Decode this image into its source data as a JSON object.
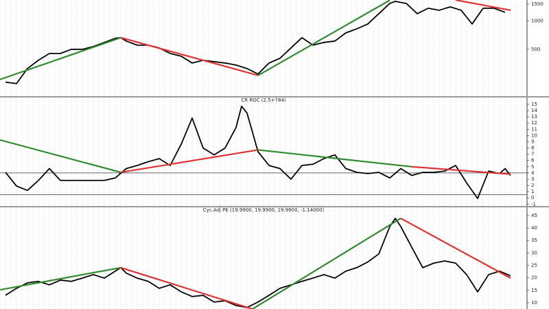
{
  "chart_data": [
    {
      "type": "line",
      "log_scale": true,
      "ylim": [
        160,
        1660
      ],
      "yticks": [
        500,
        1000,
        1500
      ],
      "xlim": [
        0,
        96
      ],
      "xticks": [
        0,
        1,
        2,
        3,
        4,
        5,
        6,
        7,
        8,
        9,
        10,
        11,
        12,
        13,
        14,
        15,
        16,
        17,
        18,
        19,
        20,
        21,
        22,
        23,
        24,
        25,
        26,
        27,
        28,
        29,
        30,
        31,
        32,
        33,
        34,
        35,
        36,
        37,
        38,
        39,
        40,
        41,
        42,
        43,
        44,
        45,
        46,
        47,
        48,
        49,
        50,
        51,
        52,
        53,
        54,
        55,
        56,
        57,
        58,
        59,
        60,
        61,
        62,
        63,
        64,
        65,
        66,
        67,
        68,
        69,
        70,
        71,
        72,
        73,
        74,
        75,
        76,
        77,
        78,
        79,
        80,
        81,
        82,
        83,
        84,
        85,
        86,
        87,
        88,
        89,
        90,
        91,
        92,
        93,
        94,
        95,
        96
      ],
      "grid": true,
      "series": [
        {
          "color": "#000000",
          "x": [
            1,
            3,
            5,
            7,
            9,
            11,
            13,
            15,
            17,
            19,
            21,
            22,
            23,
            25,
            27,
            29,
            31,
            33,
            35,
            37,
            39,
            41,
            43,
            45,
            47,
            49,
            51,
            53,
            55,
            57,
            59,
            61,
            63,
            65,
            67,
            69,
            71,
            72,
            74,
            76,
            78,
            80,
            82,
            84,
            86,
            88,
            90,
            92
          ],
          "values": [
            225,
            217,
            313,
            383,
            452,
            452,
            500,
            500,
            535,
            591,
            653,
            664,
            611,
            553,
            553,
            517,
            452,
            423,
            358,
            383,
            370,
            358,
            341,
            313,
            274,
            358,
            402,
            517,
            664,
            553,
            591,
            611,
            746,
            824,
            926,
            1190,
            1528,
            1606,
            1528,
            1190,
            1359,
            1293,
            1405,
            1293,
            926,
            1359,
            1359,
            1230
          ]
        },
        {
          "color": "#2e8b2e",
          "x": [
            0,
            22
          ],
          "values": [
            240,
            664
          ]
        },
        {
          "color": "#e03030",
          "x": [
            22,
            47
          ],
          "values": [
            664,
            265
          ]
        },
        {
          "color": "#2e8b2e",
          "x": [
            47,
            71
          ],
          "values": [
            265,
            1650
          ]
        },
        {
          "color": "#e03030",
          "x": [
            83,
            93
          ],
          "values": [
            1660,
            1293
          ]
        }
      ]
    },
    {
      "type": "line",
      "title": "CR ROC (2.5+784)",
      "ylim": [
        -1.3,
        16.1
      ],
      "yticks": [
        -1,
        0,
        1,
        2,
        3,
        4,
        5,
        6,
        7,
        8,
        9,
        10,
        11,
        12,
        13,
        14,
        15
      ],
      "xlim": [
        0,
        96
      ],
      "xticks": [
        0,
        1,
        2,
        3,
        4,
        5,
        6,
        7,
        8,
        9,
        10,
        11,
        12,
        13,
        14,
        15,
        16,
        17,
        18,
        19,
        20,
        21,
        22,
        23,
        24,
        25,
        26,
        27,
        28,
        29,
        30,
        31,
        32,
        33,
        34,
        35,
        36,
        37,
        38,
        39,
        40,
        41,
        42,
        43,
        44,
        45,
        46,
        47,
        48,
        49,
        50,
        51,
        52,
        53,
        54,
        55,
        56,
        57,
        58,
        59,
        60,
        61,
        62,
        63,
        64,
        65,
        66,
        67,
        68,
        69,
        70,
        71,
        72,
        73,
        74,
        75,
        76,
        77,
        78,
        79,
        80,
        81,
        82,
        83,
        84,
        85,
        86,
        87,
        88,
        89,
        90,
        91,
        92,
        93,
        94,
        95,
        96
      ],
      "grid": true,
      "hlines": [
        4,
        0.5
      ],
      "series": [
        {
          "color": "#000000",
          "x": [
            1,
            3,
            5,
            7,
            9,
            11,
            13,
            15,
            17,
            19,
            21,
            23,
            25,
            27,
            29,
            31,
            33,
            35,
            37,
            39,
            41,
            43,
            44,
            45,
            47,
            49,
            51,
            53,
            55,
            57,
            59,
            61,
            63,
            65,
            67,
            69,
            71,
            73,
            75,
            77,
            79,
            81,
            83,
            85,
            87,
            89,
            91,
            92,
            93
          ],
          "values": [
            4.1,
            1.9,
            1.2,
            2.8,
            4.7,
            2.8,
            2.8,
            2.8,
            2.8,
            2.8,
            3.2,
            4.7,
            5.2,
            5.8,
            6.3,
            5.2,
            8.6,
            12.8,
            8.0,
            6.9,
            8.0,
            11.3,
            14.7,
            13.6,
            7.4,
            5.2,
            4.7,
            3.0,
            5.2,
            5.4,
            6.3,
            6.9,
            4.7,
            4.1,
            3.9,
            4.1,
            3.2,
            4.7,
            3.6,
            4.1,
            4.1,
            4.3,
            5.2,
            2.4,
            -0.1,
            4.3,
            3.9,
            4.7,
            3.6
          ]
        },
        {
          "color": "#2e8b2e",
          "x": [
            0,
            22
          ],
          "values": [
            9.3,
            4.1
          ]
        },
        {
          "color": "#e03030",
          "x": [
            22,
            47
          ],
          "values": [
            4.1,
            7.7
          ]
        },
        {
          "color": "#2e8b2e",
          "x": [
            47,
            75
          ],
          "values": [
            7.7,
            5.0
          ]
        },
        {
          "color": "#e03030",
          "x": [
            75,
            93
          ],
          "values": [
            5.0,
            3.8
          ]
        }
      ]
    },
    {
      "type": "line",
      "title": "Cyc.Adj PE (19.9900, 19.9900, 19.9900, -1.14000)",
      "ylim": [
        7.5,
        48.3
      ],
      "yticks": [
        10,
        15,
        20,
        25,
        30,
        35,
        40,
        45
      ],
      "xlim": [
        0,
        96
      ],
      "xticks": [
        0,
        1,
        2,
        3,
        4,
        5,
        6,
        7,
        8,
        9,
        10,
        11,
        12,
        13,
        14,
        15,
        16,
        17,
        18,
        19,
        20,
        21,
        22,
        23,
        24,
        25,
        26,
        27,
        28,
        29,
        30,
        31,
        32,
        33,
        34,
        35,
        36,
        37,
        38,
        39,
        40,
        41,
        42,
        43,
        44,
        45,
        46,
        47,
        48,
        49,
        50,
        51,
        52,
        53,
        54,
        55,
        56,
        57,
        58,
        59,
        60,
        61,
        62,
        63,
        64,
        65,
        66,
        67,
        68,
        69,
        70,
        71,
        72,
        73,
        74,
        75,
        76,
        77,
        78,
        79,
        80,
        81,
        82,
        83,
        84,
        85,
        86,
        87,
        88,
        89,
        90,
        91,
        92,
        93,
        94,
        95,
        96
      ],
      "grid": true,
      "series": [
        {
          "color": "#000000",
          "x": [
            1,
            3,
            5,
            7,
            9,
            11,
            13,
            15,
            17,
            19,
            21,
            22,
            23,
            25,
            27,
            29,
            31,
            33,
            35,
            37,
            39,
            41,
            43,
            45,
            47,
            49,
            51,
            53,
            55,
            57,
            59,
            61,
            63,
            65,
            67,
            69,
            71,
            72,
            73,
            75,
            77,
            79,
            81,
            83,
            85,
            87,
            89,
            91,
            93
          ],
          "values": [
            13.0,
            15.8,
            18.0,
            18.6,
            17.2,
            19.1,
            18.6,
            19.9,
            21.3,
            19.9,
            22.7,
            24.1,
            21.9,
            19.9,
            18.6,
            15.8,
            17.2,
            14.4,
            12.5,
            13.0,
            10.3,
            10.8,
            8.9,
            8.1,
            10.3,
            13.0,
            15.8,
            17.2,
            18.6,
            19.9,
            21.3,
            19.9,
            22.7,
            24.1,
            26.4,
            29.6,
            40.6,
            43.9,
            40.6,
            32.3,
            24.1,
            25.9,
            26.8,
            25.9,
            21.3,
            14.4,
            21.3,
            22.7,
            20.8
          ]
        },
        {
          "color": "#2e8b2e",
          "x": [
            0,
            22
          ],
          "values": [
            15.2,
            24.1
          ]
        },
        {
          "color": "#e03030",
          "x": [
            22,
            46
          ],
          "values": [
            24.1,
            7.5
          ]
        },
        {
          "color": "#2e8b2e",
          "x": [
            46,
            73
          ],
          "values": [
            7.5,
            43.9
          ]
        },
        {
          "color": "#e03030",
          "x": [
            73,
            93
          ],
          "values": [
            43.9,
            19.9
          ]
        }
      ]
    }
  ]
}
